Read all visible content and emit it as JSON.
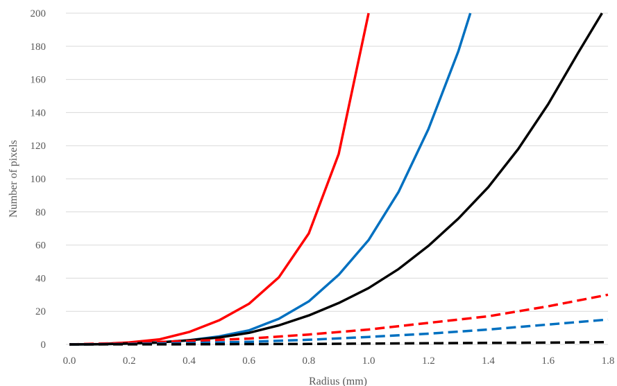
{
  "chart_data": {
    "type": "line",
    "title": "",
    "xlabel": "Radius (mm)",
    "ylabel": "Number of pixels",
    "xlim": [
      0.0,
      1.8
    ],
    "ylim": [
      0,
      200
    ],
    "x_ticks": [
      "0.0",
      "0.2",
      "0.4",
      "0.6",
      "0.8",
      "1.0",
      "1.2",
      "1.4",
      "1.6",
      "1.8"
    ],
    "y_ticks": [
      "0",
      "20",
      "40",
      "60",
      "80",
      "100",
      "120",
      "140",
      "160",
      "180",
      "200"
    ],
    "grid": true,
    "legend": "none",
    "series": [
      {
        "color": "#ff0000",
        "dash": "solid",
        "x": [
          0.0,
          0.1,
          0.2,
          0.3,
          0.4,
          0.5,
          0.6,
          0.7,
          0.8,
          0.9,
          1.0
        ],
        "y": [
          0,
          0.2,
          1.2,
          3,
          7.5,
          14.5,
          24.5,
          40.5,
          67,
          115,
          200
        ]
      },
      {
        "color": "#0070c0",
        "dash": "solid",
        "x": [
          0.0,
          0.1,
          0.2,
          0.3,
          0.4,
          0.5,
          0.6,
          0.7,
          0.8,
          0.9,
          1.0,
          1.1,
          1.2,
          1.3,
          1.34
        ],
        "y": [
          0,
          0.1,
          0.5,
          1.2,
          2.5,
          4.8,
          8.5,
          15.5,
          26,
          42,
          63,
          92,
          130,
          177,
          200
        ]
      },
      {
        "color": "#000000",
        "dash": "solid",
        "x": [
          0.0,
          0.1,
          0.2,
          0.3,
          0.4,
          0.5,
          0.6,
          0.7,
          0.8,
          0.9,
          1.0,
          1.1,
          1.2,
          1.3,
          1.4,
          1.5,
          1.6,
          1.7,
          1.78
        ],
        "y": [
          0,
          0.1,
          0.5,
          1.2,
          2.5,
          4.2,
          7,
          11.5,
          17.5,
          25,
          34,
          45.5,
          59.5,
          76,
          95,
          118,
          145,
          176,
          200
        ]
      },
      {
        "color": "#ff0000",
        "dash": "dashed",
        "x": [
          0.0,
          0.2,
          0.4,
          0.6,
          0.8,
          1.0,
          1.2,
          1.4,
          1.6,
          1.8
        ],
        "y": [
          0,
          1,
          2,
          3.5,
          6,
          9,
          13,
          17,
          23,
          30
        ]
      },
      {
        "color": "#0070c0",
        "dash": "dashed",
        "x": [
          0.0,
          0.2,
          0.4,
          0.6,
          0.8,
          1.0,
          1.2,
          1.4,
          1.6,
          1.8
        ],
        "y": [
          0,
          0.3,
          0.8,
          1.6,
          2.8,
          4.5,
          6.5,
          9,
          12,
          15
        ]
      },
      {
        "color": "#000000",
        "dash": "dashed",
        "x": [
          0.0,
          0.2,
          0.4,
          0.6,
          0.8,
          1.0,
          1.2,
          1.4,
          1.6,
          1.8
        ],
        "y": [
          0,
          0.05,
          0.1,
          0.2,
          0.3,
          0.5,
          0.7,
          0.9,
          1.1,
          1.4
        ]
      }
    ]
  }
}
